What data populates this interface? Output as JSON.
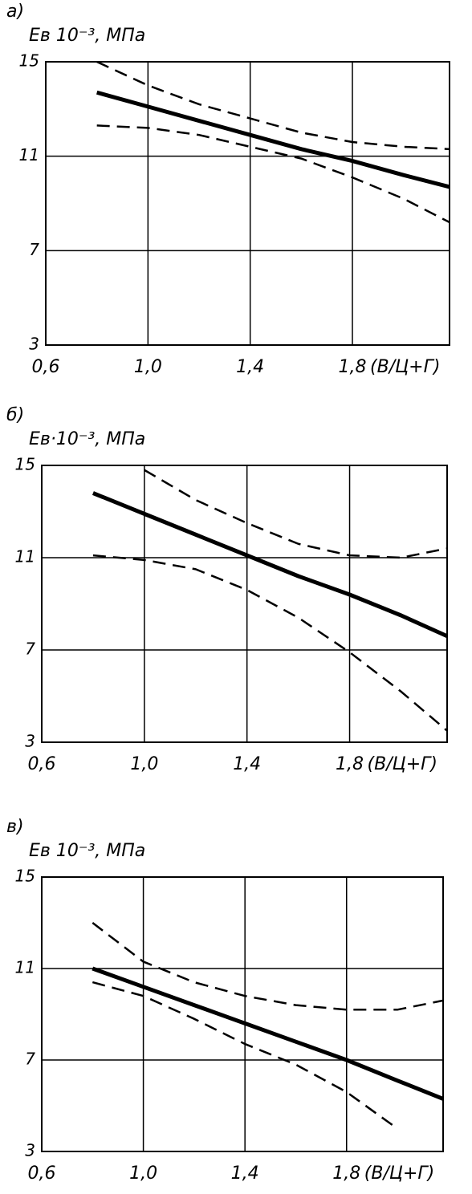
{
  "chart_data": [
    {
      "type": "line",
      "panel": "а)",
      "ylabel": "Eв 10⁻³, МПа",
      "xlabel": "(В/Ц+Г)",
      "x": [
        0.8,
        1.0,
        1.2,
        1.4,
        1.6,
        1.8,
        2.0,
        2.18
      ],
      "series": [
        {
          "color": "#000000",
          "style": "solid",
          "values": [
            13.7,
            13.1,
            12.5,
            11.9,
            11.3,
            10.8,
            10.2,
            9.7
          ]
        },
        {
          "color": "#000000",
          "style": "dashed",
          "values": [
            15.0,
            14.0,
            13.2,
            12.6,
            12.0,
            11.6,
            11.4,
            11.3
          ]
        },
        {
          "color": "#000000",
          "style": "dashed",
          "values": [
            12.3,
            12.2,
            11.9,
            11.4,
            10.9,
            10.1,
            9.2,
            8.2
          ]
        }
      ],
      "xlim": [
        0.6,
        2.18
      ],
      "ylim": [
        3,
        15
      ],
      "xticks": [
        {
          "value": 0.6,
          "label": "0,6"
        },
        {
          "value": 1.0,
          "label": "1,0"
        },
        {
          "value": 1.4,
          "label": "1,4"
        },
        {
          "value": 1.8,
          "label": "1,8"
        }
      ],
      "yticks": [
        3,
        7,
        11,
        15
      ],
      "grid": true
    },
    {
      "type": "line",
      "panel": "б)",
      "ylabel": "Eв·10⁻³, МПа",
      "xlabel": "(В/Ц+Г)",
      "x": [
        0.8,
        1.0,
        1.2,
        1.4,
        1.6,
        1.8,
        2.0,
        2.18
      ],
      "series": [
        {
          "color": "#000000",
          "style": "solid",
          "values": [
            13.8,
            12.9,
            12.0,
            11.1,
            10.2,
            9.4,
            8.5,
            7.6
          ]
        },
        {
          "color": "#000000",
          "style": "dashed",
          "values": [
            null,
            14.8,
            13.5,
            12.5,
            11.6,
            11.1,
            11.0,
            11.4
          ]
        },
        {
          "color": "#000000",
          "style": "dashed",
          "values": [
            11.1,
            10.9,
            10.5,
            9.6,
            8.4,
            6.9,
            5.2,
            3.5
          ]
        }
      ],
      "xlim": [
        0.6,
        2.18
      ],
      "ylim": [
        3,
        15
      ],
      "xticks": [
        {
          "value": 0.6,
          "label": "0,6"
        },
        {
          "value": 1.0,
          "label": "1,0"
        },
        {
          "value": 1.4,
          "label": "1,4"
        },
        {
          "value": 1.8,
          "label": "1,8"
        }
      ],
      "yticks": [
        3,
        7,
        11,
        15
      ],
      "grid": true
    },
    {
      "type": "line",
      "panel": "в)",
      "ylabel": "Eв 10⁻³, МПа",
      "xlabel": "(В/Ц+Г)",
      "x": [
        0.8,
        1.0,
        1.2,
        1.4,
        1.6,
        1.8,
        2.0,
        2.18
      ],
      "series": [
        {
          "color": "#000000",
          "style": "solid",
          "values": [
            11.0,
            10.2,
            9.4,
            8.6,
            7.8,
            7.0,
            6.1,
            5.3
          ]
        },
        {
          "color": "#000000",
          "style": "dashed",
          "values": [
            13.0,
            11.3,
            10.4,
            9.8,
            9.4,
            9.2,
            9.2,
            9.6
          ]
        },
        {
          "color": "#000000",
          "style": "dashed",
          "values": [
            10.4,
            9.8,
            8.8,
            7.7,
            6.8,
            5.6,
            4.0,
            null
          ]
        }
      ],
      "xlim": [
        0.6,
        2.18
      ],
      "ylim": [
        3,
        15
      ],
      "xticks": [
        {
          "value": 0.6,
          "label": "0,6"
        },
        {
          "value": 1.0,
          "label": "1,0"
        },
        {
          "value": 1.4,
          "label": "1,4"
        },
        {
          "value": 1.8,
          "label": "1,8"
        }
      ],
      "yticks": [
        3,
        7,
        11,
        15
      ],
      "grid": true
    }
  ]
}
